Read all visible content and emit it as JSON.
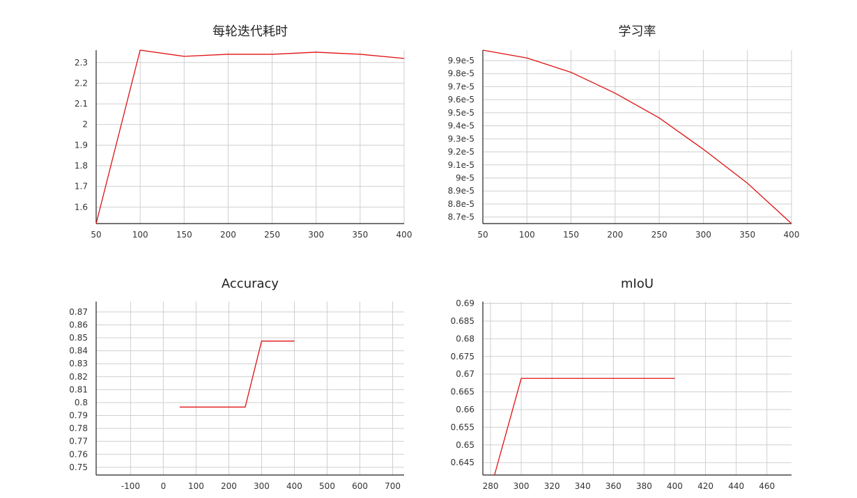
{
  "chart_data": [
    {
      "id": "iter-time",
      "type": "line",
      "title": "每轮迭代耗时",
      "xlabel": "",
      "ylabel": "",
      "xlim": [
        50,
        400
      ],
      "ylim": [
        1.52,
        2.36
      ],
      "x_ticks": [
        50,
        100,
        150,
        200,
        250,
        300,
        350,
        400
      ],
      "y_ticks": [
        1.6,
        1.7,
        1.8,
        1.9,
        2,
        2.1,
        2.2,
        2.3
      ],
      "x_tick_labels": [
        "50",
        "100",
        "150",
        "200",
        "250",
        "300",
        "350",
        "400"
      ],
      "y_tick_labels": [
        "1.6",
        "1.7",
        "1.8",
        "1.9",
        "2",
        "2.1",
        "2.2",
        "2.3"
      ],
      "grid": true,
      "series": [
        {
          "color": "#e01010",
          "x": [
            50,
            100,
            150,
            200,
            250,
            300,
            350,
            400
          ],
          "y": [
            1.52,
            2.36,
            2.33,
            2.34,
            2.34,
            2.35,
            2.34,
            2.32
          ]
        }
      ]
    },
    {
      "id": "learning-rate",
      "type": "line",
      "title": "学习率",
      "xlabel": "",
      "ylabel": "",
      "xlim": [
        50,
        400
      ],
      "ylim": [
        8.65e-05,
        9.98e-05
      ],
      "x_ticks": [
        50,
        100,
        150,
        200,
        250,
        300,
        350,
        400
      ],
      "y_ticks": [
        8.7e-05,
        8.8e-05,
        8.9e-05,
        9e-05,
        9.1e-05,
        9.2e-05,
        9.3e-05,
        9.4e-05,
        9.5e-05,
        9.6e-05,
        9.7e-05,
        9.8e-05,
        9.9e-05
      ],
      "x_tick_labels": [
        "50",
        "100",
        "150",
        "200",
        "250",
        "300",
        "350",
        "400"
      ],
      "y_tick_labels": [
        "8.7e-5",
        "8.8e-5",
        "8.9e-5",
        "9e-5",
        "9.1e-5",
        "9.2e-5",
        "9.3e-5",
        "9.4e-5",
        "9.5e-5",
        "9.6e-5",
        "9.7e-5",
        "9.8e-5",
        "9.9e-5"
      ],
      "grid": true,
      "series": [
        {
          "color": "#e01010",
          "x": [
            50,
            100,
            150,
            200,
            250,
            300,
            350,
            400
          ],
          "y": [
            9.98e-05,
            9.92e-05,
            9.81e-05,
            9.65e-05,
            9.46e-05,
            9.22e-05,
            8.96e-05,
            8.65e-05
          ]
        }
      ]
    },
    {
      "id": "accuracy",
      "type": "line",
      "title": "Accuracy",
      "xlabel": "",
      "ylabel": "",
      "xlim": [
        -205,
        735
      ],
      "ylim": [
        0.744,
        0.878
      ],
      "x_ticks": [
        -100,
        0,
        100,
        200,
        300,
        400,
        500,
        600,
        700
      ],
      "y_ticks": [
        0.75,
        0.76,
        0.77,
        0.78,
        0.79,
        0.8,
        0.81,
        0.82,
        0.83,
        0.84,
        0.85,
        0.86,
        0.87
      ],
      "x_tick_labels": [
        "-100",
        "0",
        "100",
        "200",
        "300",
        "400",
        "500",
        "600",
        "700"
      ],
      "y_tick_labels": [
        "0.75",
        "0.76",
        "0.77",
        "0.78",
        "0.79",
        "0.8",
        "0.81",
        "0.82",
        "0.83",
        "0.84",
        "0.85",
        "0.86",
        "0.87"
      ],
      "grid": true,
      "series": [
        {
          "color": "#e01010",
          "x": [
            50,
            250,
            300,
            400
          ],
          "y": [
            0.7965,
            0.7965,
            0.8475,
            0.8475
          ]
        }
      ]
    },
    {
      "id": "miou",
      "type": "line",
      "title": "mIoU",
      "xlabel": "",
      "ylabel": "",
      "xlim": [
        275,
        476
      ],
      "ylim": [
        0.6415,
        0.6905
      ],
      "x_ticks": [
        280,
        300,
        320,
        340,
        360,
        380,
        400,
        420,
        440,
        460
      ],
      "y_ticks": [
        0.645,
        0.65,
        0.655,
        0.66,
        0.665,
        0.67,
        0.675,
        0.68,
        0.685,
        0.69
      ],
      "x_tick_labels": [
        "280",
        "300",
        "320",
        "340",
        "360",
        "380",
        "400",
        "420",
        "440",
        "460"
      ],
      "y_tick_labels": [
        "0.645",
        "0.65",
        "0.655",
        "0.66",
        "0.665",
        "0.67",
        "0.675",
        "0.68",
        "0.685",
        "0.69"
      ],
      "grid": true,
      "series": [
        {
          "color": "#e01010",
          "x": [
            282.6,
            300,
            400
          ],
          "y": [
            0.6415,
            0.6688,
            0.6688
          ]
        }
      ]
    }
  ]
}
